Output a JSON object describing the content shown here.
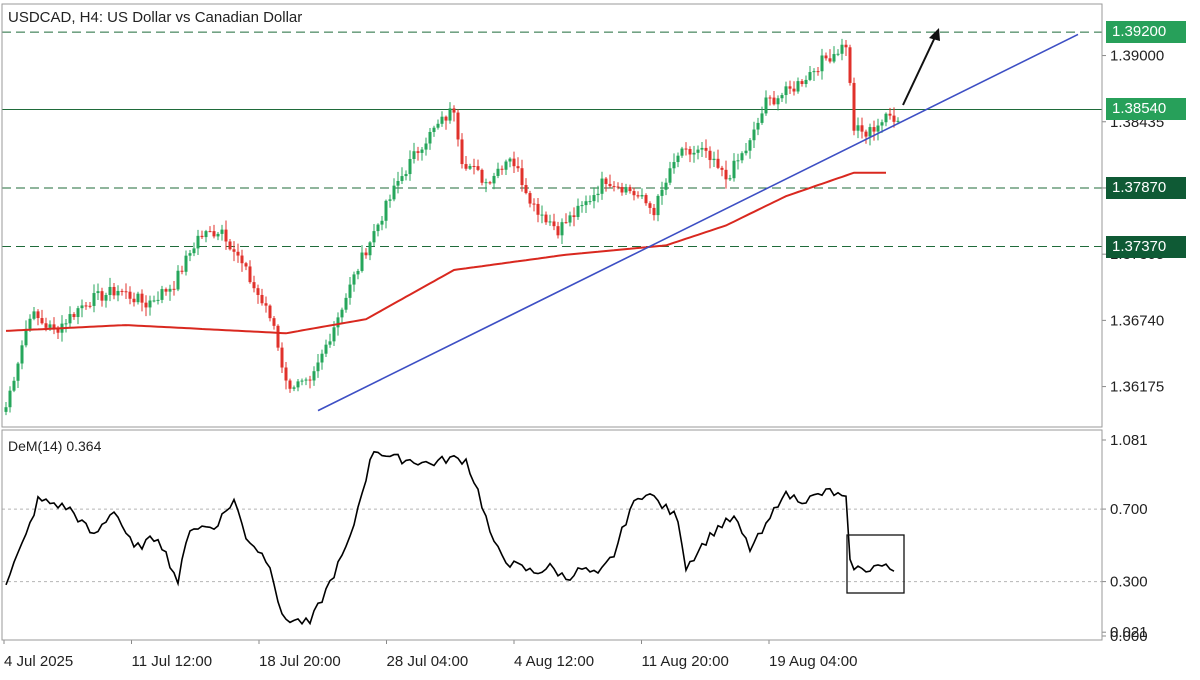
{
  "header": {
    "title": "USDCAD, H4:  US Dollar vs Canadian Dollar"
  },
  "indicator": {
    "label": "DeM(14) 0.364"
  },
  "colors": {
    "up_candle": "#26a65b",
    "down_candle": "#e0312b",
    "ma": "#d9281f",
    "trendline": "#3d4fc4",
    "level": "#1f6b3a",
    "label_bg_green": "#27a05a",
    "label_bg_dark": "#0f5a35",
    "dem_line": "#000000",
    "arrow": "#111111"
  },
  "price_axis": {
    "ticks": [
      "1.39000",
      "1.38435",
      "1.37870",
      "1.37305",
      "1.36740",
      "1.36175"
    ],
    "tick_values": [
      1.39,
      1.38435,
      1.3787,
      1.37305,
      1.3674,
      1.36175
    ],
    "range": [
      1.3583,
      1.3944
    ],
    "levels": [
      {
        "label": "1.39200",
        "value": 1.392,
        "style": "dashed",
        "label_style": "green"
      },
      {
        "label": "1.38540",
        "value": 1.3854,
        "style": "solid",
        "label_style": "green"
      },
      {
        "label": "1.37870",
        "value": 1.3787,
        "style": "dashed",
        "label_style": "dark"
      },
      {
        "label": "1.37370",
        "value": 1.3737,
        "style": "dashed",
        "label_style": "dark"
      }
    ]
  },
  "dem_axis": {
    "ticks": [
      "1.081",
      "0.700",
      "0.300",
      "0.021",
      "0.000"
    ],
    "tick_values": [
      1.081,
      0.7,
      0.3,
      0.021,
      0.0
    ],
    "range": [
      0.0,
      1.081
    ],
    "dotted_levels": [
      0.7,
      0.3
    ]
  },
  "time_axis": {
    "labels": [
      "4 Jul 2025",
      "11 Jul 12:00",
      "18 Jul 20:00",
      "28 Jul 04:00",
      "4 Aug 12:00",
      "11 Aug 20:00",
      "19 Aug 04:00"
    ]
  },
  "chart_data": {
    "type": "candlestick",
    "symbol": "USDCAD",
    "timeframe": "H4",
    "series": [
      {
        "name": "USDCAD",
        "type": "candlestick",
        "anchors_close": [
          [
            0,
            1.36
          ],
          [
            6,
            1.368
          ],
          [
            12,
            1.3665
          ],
          [
            20,
            1.369
          ],
          [
            28,
            1.37
          ],
          [
            35,
            1.3688
          ],
          [
            42,
            1.3705
          ],
          [
            48,
            1.3745
          ],
          [
            54,
            1.3752
          ],
          [
            60,
            1.3715
          ],
          [
            67,
            1.367
          ],
          [
            70,
            1.362
          ],
          [
            76,
            1.3618
          ],
          [
            82,
            1.367
          ],
          [
            90,
            1.3735
          ],
          [
            98,
            1.3792
          ],
          [
            104,
            1.3825
          ],
          [
            112,
            1.3855
          ],
          [
            114,
            1.3812
          ],
          [
            120,
            1.3792
          ],
          [
            126,
            1.3815
          ],
          [
            132,
            1.3772
          ],
          [
            138,
            1.3752
          ],
          [
            144,
            1.377
          ],
          [
            150,
            1.3795
          ],
          [
            156,
            1.3785
          ],
          [
            162,
            1.3768
          ],
          [
            168,
            1.3815
          ],
          [
            174,
            1.3818
          ],
          [
            180,
            1.3795
          ],
          [
            186,
            1.3825
          ],
          [
            190,
            1.386
          ],
          [
            196,
            1.387
          ],
          [
            204,
            1.3895
          ],
          [
            210,
            1.391
          ],
          [
            212,
            1.3838
          ],
          [
            215,
            1.3832
          ],
          [
            218,
            1.3842
          ],
          [
            221,
            1.3848
          ]
        ]
      },
      {
        "name": "MA",
        "type": "line",
        "anchors": [
          [
            0,
            1.3665
          ],
          [
            30,
            1.367
          ],
          [
            70,
            1.3663
          ],
          [
            90,
            1.3675
          ],
          [
            112,
            1.3717
          ],
          [
            140,
            1.373
          ],
          [
            165,
            1.3738
          ],
          [
            180,
            1.3755
          ],
          [
            195,
            1.378
          ],
          [
            212,
            1.38
          ],
          [
            220,
            1.38
          ]
        ]
      },
      {
        "name": "Trendline",
        "type": "line",
        "points": [
          [
            78,
            1.3597
          ],
          [
            268,
            1.3918
          ]
        ]
      },
      {
        "name": "DeM(14)",
        "type": "line",
        "last": 0.364,
        "anchors": [
          [
            0,
            0.3
          ],
          [
            5,
            0.55
          ],
          [
            8,
            0.75
          ],
          [
            12,
            0.73
          ],
          [
            16,
            0.7
          ],
          [
            22,
            0.55
          ],
          [
            27,
            0.7
          ],
          [
            32,
            0.48
          ],
          [
            38,
            0.55
          ],
          [
            43,
            0.3
          ],
          [
            46,
            0.6
          ],
          [
            52,
            0.6
          ],
          [
            57,
            0.75
          ],
          [
            60,
            0.55
          ],
          [
            66,
            0.4
          ],
          [
            69,
            0.1
          ],
          [
            76,
            0.07
          ],
          [
            80,
            0.25
          ],
          [
            86,
            0.53
          ],
          [
            89,
            0.8
          ],
          [
            92,
            1.03
          ],
          [
            97,
            0.98
          ],
          [
            101,
            0.97
          ],
          [
            106,
            0.95
          ],
          [
            111,
            0.98
          ],
          [
            115,
            0.97
          ],
          [
            118,
            0.8
          ],
          [
            122,
            0.5
          ],
          [
            126,
            0.4
          ],
          [
            132,
            0.35
          ],
          [
            136,
            0.38
          ],
          [
            140,
            0.32
          ],
          [
            144,
            0.37
          ],
          [
            148,
            0.33
          ],
          [
            152,
            0.45
          ],
          [
            156,
            0.7
          ],
          [
            160,
            0.8
          ],
          [
            164,
            0.72
          ],
          [
            168,
            0.65
          ],
          [
            170,
            0.38
          ],
          [
            174,
            0.5
          ],
          [
            178,
            0.6
          ],
          [
            182,
            0.65
          ],
          [
            186,
            0.48
          ],
          [
            190,
            0.6
          ],
          [
            194,
            0.78
          ],
          [
            200,
            0.75
          ],
          [
            206,
            0.8
          ],
          [
            210,
            0.75
          ],
          [
            211,
            0.4
          ],
          [
            214,
            0.36
          ],
          [
            218,
            0.39
          ],
          [
            222,
            0.364
          ]
        ]
      }
    ]
  }
}
